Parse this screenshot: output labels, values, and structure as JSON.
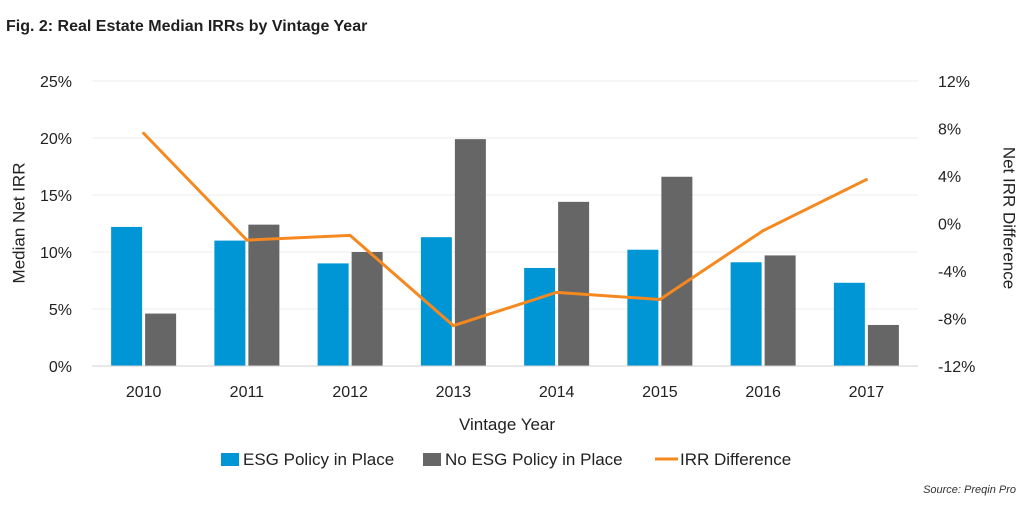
{
  "header": {
    "title": "Fig. 2: Real Estate Median IRRs by Vintage Year",
    "source": "Source: Preqin Pro"
  },
  "chart_data": {
    "type": "bar+line",
    "categories": [
      "2010",
      "2011",
      "2012",
      "2013",
      "2014",
      "2015",
      "2016",
      "2017"
    ],
    "series": [
      {
        "name": "ESG Policy in Place",
        "type": "bar",
        "axis": "left",
        "color": "#0096d6",
        "values": [
          12.2,
          11.0,
          9.0,
          11.3,
          8.6,
          10.2,
          9.1,
          7.3
        ]
      },
      {
        "name": "No ESG Policy in Place",
        "type": "bar",
        "axis": "left",
        "color": "#666666",
        "values": [
          4.6,
          12.4,
          10.0,
          19.9,
          14.4,
          16.6,
          9.7,
          3.6
        ]
      },
      {
        "name": "IRR Difference",
        "type": "line",
        "axis": "right",
        "color": "#f5891f",
        "values": [
          7.6,
          -1.4,
          -1.0,
          -8.6,
          -5.8,
          -6.4,
          -0.6,
          3.7
        ]
      }
    ],
    "y_left": {
      "label": "Median Net IRR",
      "min": 0,
      "max": 25,
      "ticks": [
        0,
        5,
        10,
        15,
        20,
        25
      ],
      "tick_labels": [
        "0%",
        "5%",
        "10%",
        "15%",
        "20%",
        "25%"
      ]
    },
    "y_right": {
      "label": "Net IRR Difference",
      "min": -12,
      "max": 12,
      "ticks": [
        -12,
        -8,
        -4,
        0,
        4,
        8,
        12
      ],
      "tick_labels": [
        "-12%",
        "-8%",
        "-4%",
        "0%",
        "4%",
        "8%",
        "12%"
      ]
    },
    "xlabel": "Vintage Year",
    "legend": {
      "position": "bottom-center",
      "items": [
        "ESG Policy in Place",
        "No ESG Policy in Place",
        "IRR Difference"
      ]
    }
  }
}
